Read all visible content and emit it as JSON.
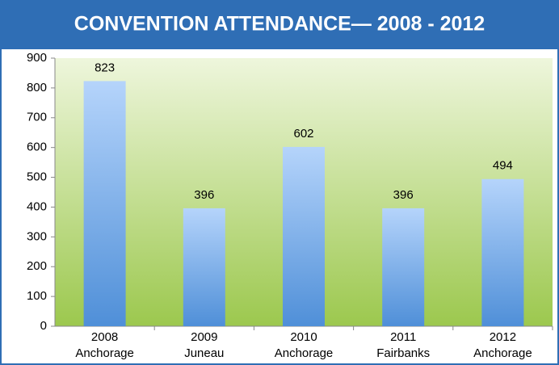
{
  "chart_data": {
    "type": "bar",
    "title": "CONVENTION ATTENDANCE— 2008 - 2012",
    "categories": [
      [
        "2008",
        "Anchorage"
      ],
      [
        "2009",
        "Juneau"
      ],
      [
        "2010",
        "Anchorage"
      ],
      [
        "2011",
        "Fairbanks"
      ],
      [
        "2012",
        "Anchorage"
      ]
    ],
    "values": [
      823,
      396,
      602,
      396,
      494
    ],
    "color": "#6fa6e6",
    "ylim": [
      0,
      900
    ],
    "yticks": [
      0,
      100,
      200,
      300,
      400,
      500,
      600,
      700,
      800,
      900
    ],
    "grid": true
  }
}
